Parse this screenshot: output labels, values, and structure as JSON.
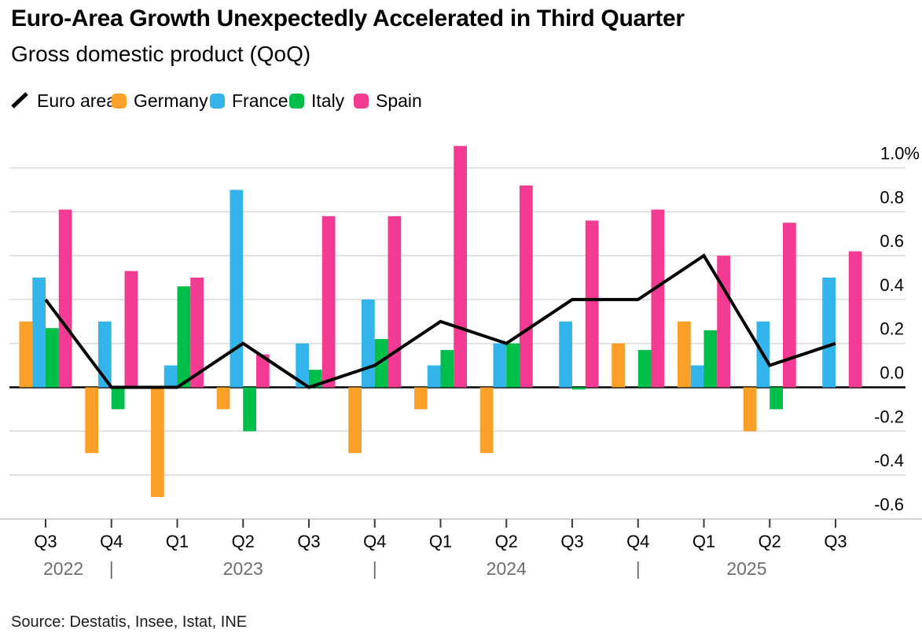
{
  "header": {
    "title": "Euro-Area Growth Unexpectedly Accelerated in Third Quarter",
    "subtitle": "Gross domestic product (QoQ)"
  },
  "legend": {
    "items": [
      {
        "label": "Euro area",
        "type": "line",
        "color": "#000000"
      },
      {
        "label": "Germany",
        "type": "swatch",
        "color": "#FAA028"
      },
      {
        "label": "France",
        "type": "swatch",
        "color": "#33B5EC"
      },
      {
        "label": "Italy",
        "type": "swatch",
        "color": "#00BE4A"
      },
      {
        "label": "Spain",
        "type": "swatch",
        "color": "#F23B92"
      }
    ]
  },
  "source": "Source: Destatis, Insee, Istat, INE",
  "chart_data": {
    "type": "bar",
    "title": "Euro-Area Growth Unexpectedly Accelerated in Third Quarter",
    "subtitle": "Gross domestic product (QoQ)",
    "xlabel": "",
    "ylabel": "",
    "ylim": [
      -0.72,
      1.12
    ],
    "grid": true,
    "legend_position": "top",
    "categories": [
      "Q3",
      "Q4",
      "Q1",
      "Q2",
      "Q3",
      "Q4",
      "Q1",
      "Q2",
      "Q3",
      "Q4",
      "Q1",
      "Q2",
      "Q3"
    ],
    "year_labels": [
      {
        "label": "2022",
        "index": 0.27
      },
      {
        "label": "2023",
        "index": 3.0
      },
      {
        "label": "2024",
        "index": 7.0
      },
      {
        "label": "2025",
        "index": 10.65
      }
    ],
    "year_separators": [
      1,
      5,
      9
    ],
    "series": [
      {
        "name": "Germany",
        "type": "bar",
        "color": "#FAA028",
        "values": [
          0.3,
          -0.3,
          -0.5,
          -0.1,
          0.0,
          -0.3,
          -0.1,
          -0.3,
          0.0,
          0.2,
          0.3,
          -0.2,
          0.0
        ]
      },
      {
        "name": "France",
        "type": "bar",
        "color": "#33B5EC",
        "values": [
          0.5,
          0.3,
          0.1,
          0.9,
          0.2,
          0.4,
          0.1,
          0.2,
          0.3,
          0.0,
          0.1,
          0.3,
          0.5
        ]
      },
      {
        "name": "Italy",
        "type": "bar",
        "color": "#00BE4A",
        "values": [
          0.27,
          -0.1,
          0.46,
          -0.2,
          0.08,
          0.22,
          0.17,
          0.2,
          -0.01,
          0.17,
          0.26,
          -0.1,
          0.0
        ]
      },
      {
        "name": "Spain",
        "type": "bar",
        "color": "#F23B92",
        "values": [
          0.81,
          0.53,
          0.5,
          0.15,
          0.78,
          0.78,
          1.1,
          0.92,
          0.76,
          0.81,
          0.6,
          0.75,
          0.62
        ]
      }
    ],
    "line_series": {
      "name": "Euro area",
      "type": "line",
      "color": "#000000",
      "values": [
        0.4,
        0.0,
        0.0,
        0.2,
        0.0,
        0.1,
        0.3,
        0.2,
        0.4,
        0.4,
        0.6,
        0.1,
        0.2
      ]
    },
    "ylabel_ticks": [
      "1.0%",
      "0.8",
      "0.6",
      "0.4",
      "0.2",
      "0.0",
      "-0.2",
      "-0.4",
      "-0.6"
    ],
    "ytick_values": [
      1.0,
      0.8,
      0.6,
      0.4,
      0.2,
      0.0,
      -0.2,
      -0.4,
      -0.6
    ]
  }
}
